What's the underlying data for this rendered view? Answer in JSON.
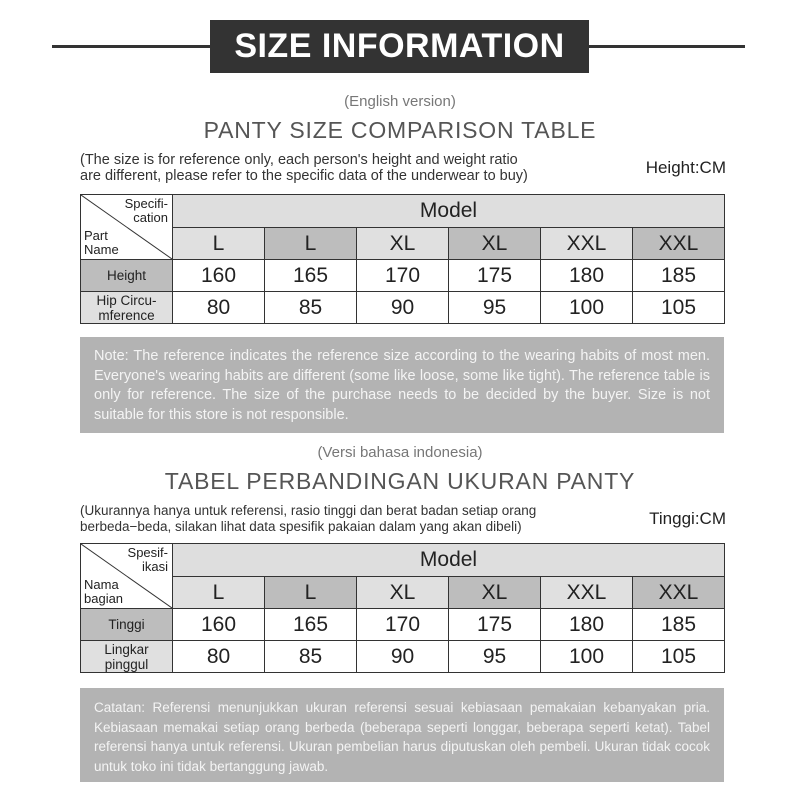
{
  "header": {
    "title": "SIZE INFORMATION"
  },
  "english": {
    "version": "(English version)",
    "title": "PANTY SIZE COMPARISON TABLE",
    "disclaimer_line1": "(The size is for reference only, each person's height and weight ratio",
    "disclaimer_line2": "are different, please refer to the specific data of the underwear to buy)",
    "unit": "Height:CM",
    "corner_top": "Specifi-\ncation",
    "corner_bottom": "Part\nName",
    "model": "Model",
    "sizes": [
      "L",
      "L",
      "XL",
      "XL",
      "XXL",
      "XXL"
    ],
    "rows": [
      {
        "label": "Height",
        "values": [
          "160",
          "165",
          "170",
          "175",
          "180",
          "185"
        ]
      },
      {
        "label": "Hip Circu-\nmference",
        "values": [
          "80",
          "85",
          "90",
          "95",
          "100",
          "105"
        ]
      }
    ],
    "note": "Note: The reference indicates the reference size according to the wearing habits of most men. Everyone's wearing habits are different (some like loose, some like tight). The reference table is only for reference. The size of the purchase needs to be decided by the buyer. Size is not suitable for this store is not responsible."
  },
  "indonesian": {
    "version": "(Versi bahasa indonesia)",
    "title": "TABEL PERBANDINGAN UKURAN PANTY",
    "disclaimer_line1": "(Ukurannya hanya untuk referensi, rasio tinggi dan berat badan setiap orang",
    "disclaimer_line2": "berbeda−beda, silakan lihat data spesifik pakaian dalam yang akan dibeli)",
    "unit": "Tinggi:CM",
    "corner_top": "Spesif-\nikasi",
    "corner_bottom": "Nama\nbagian",
    "model": "Model",
    "sizes": [
      "L",
      "L",
      "XL",
      "XL",
      "XXL",
      "XXL"
    ],
    "rows": [
      {
        "label": "Tinggi",
        "values": [
          "160",
          "165",
          "170",
          "175",
          "180",
          "185"
        ]
      },
      {
        "label": "Lingkar\npinggul",
        "values": [
          "80",
          "85",
          "90",
          "95",
          "100",
          "105"
        ]
      }
    ],
    "note": "Catatan: Referensi menunjukkan ukuran referensi sesuai kebiasaan pemakaian kebanyakan pria. Kebiasaan memakai setiap orang berbeda (beberapa seperti longgar, beberapa seperti ketat). Tabel referensi hanya untuk referensi. Ukuran pembelian harus diputuskan oleh pembeli. Ukuran tidak cocok untuk toko ini tidak bertanggung jawab."
  },
  "colors": {
    "title_bg": "#333333",
    "header_light": "#e0e0e0",
    "header_dark": "#bdbdbd",
    "note_bg": "#b3b3b3"
  }
}
